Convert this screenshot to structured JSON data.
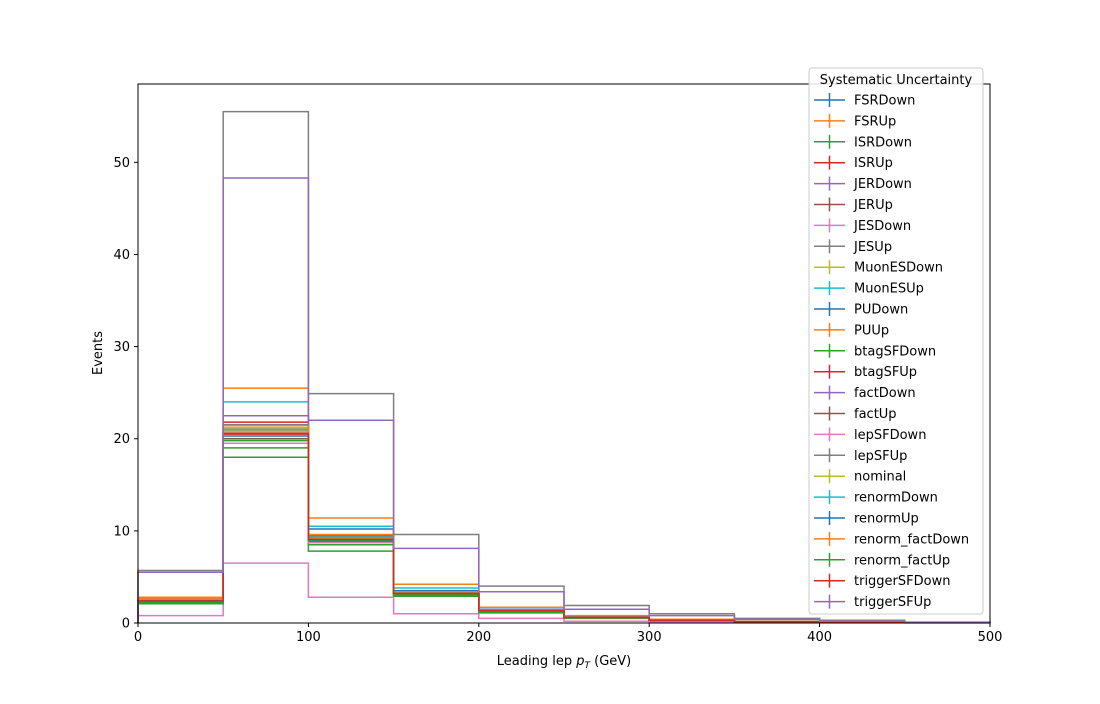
{
  "chart_data": {
    "type": "line",
    "step": "histogram",
    "xlabel_main": "Leading lep ",
    "xlabel_math": "p",
    "xlabel_sub": "T",
    "xlabel_unit": " (GeV)",
    "ylabel": "Events",
    "xlim": [
      0,
      500
    ],
    "ylim": [
      0,
      58.5
    ],
    "xticks": [
      0,
      100,
      200,
      300,
      400,
      500
    ],
    "yticks": [
      0,
      10,
      20,
      30,
      40,
      50
    ],
    "grid": false,
    "legend": {
      "title": "Systematic Uncertainty",
      "position": "top-right"
    },
    "bin_edges": [
      0,
      50,
      100,
      150,
      200,
      250,
      300,
      350,
      400,
      450,
      500
    ],
    "series": [
      {
        "name": "FSRDown",
        "color": "#1f77b4",
        "values": [
          2.5,
          20.0,
          9.0,
          3.2,
          1.3,
          0.6,
          0.3,
          0.15,
          0.08,
          0.03
        ]
      },
      {
        "name": "FSRUp",
        "color": "#ff7f0e",
        "values": [
          2.6,
          21.0,
          9.3,
          3.3,
          1.4,
          0.6,
          0.3,
          0.15,
          0.08,
          0.03
        ]
      },
      {
        "name": "ISRDown",
        "color": "#2ca02c",
        "values": [
          2.2,
          19.0,
          8.5,
          3.0,
          1.2,
          0.55,
          0.25,
          0.12,
          0.06,
          0.03
        ]
      },
      {
        "name": "ISRUp",
        "color": "#d62728",
        "values": [
          2.4,
          20.5,
          9.0,
          3.1,
          1.3,
          0.6,
          0.3,
          0.14,
          0.07,
          0.03
        ]
      },
      {
        "name": "JERDown",
        "color": "#9467bd",
        "values": [
          2.5,
          21.0,
          9.1,
          3.2,
          1.3,
          0.6,
          0.3,
          0.15,
          0.07,
          0.03
        ]
      },
      {
        "name": "JERUp",
        "color": "#8c564b",
        "values": [
          2.5,
          20.8,
          9.0,
          3.2,
          1.3,
          0.6,
          0.3,
          0.15,
          0.07,
          0.03
        ]
      },
      {
        "name": "JESDown",
        "color": "#e377c2",
        "values": [
          0.8,
          6.5,
          2.8,
          1.0,
          0.5,
          0.2,
          0.1,
          0.05,
          0.03,
          0.01
        ]
      },
      {
        "name": "JESUp",
        "color": "#7f7f7f",
        "values": [
          5.7,
          55.5,
          24.9,
          9.6,
          4.0,
          1.9,
          1.0,
          0.5,
          0.3,
          0.1
        ]
      },
      {
        "name": "MuonESDown",
        "color": "#bcbd22",
        "values": [
          2.5,
          21.2,
          9.2,
          3.3,
          1.3,
          0.6,
          0.3,
          0.15,
          0.08,
          0.03
        ]
      },
      {
        "name": "MuonESUp",
        "color": "#17becf",
        "values": [
          2.6,
          24.0,
          10.5,
          3.8,
          1.5,
          0.7,
          0.35,
          0.18,
          0.09,
          0.04
        ]
      },
      {
        "name": "PUDown",
        "color": "#1f77b4",
        "values": [
          2.5,
          21.5,
          10.2,
          3.5,
          1.5,
          0.6,
          0.3,
          0.15,
          0.08,
          0.03
        ]
      },
      {
        "name": "PUUp",
        "color": "#ff7f0e",
        "values": [
          2.8,
          25.5,
          11.4,
          4.2,
          1.7,
          0.8,
          0.4,
          0.2,
          0.1,
          0.05
        ]
      },
      {
        "name": "btagSFDown",
        "color": "#2ca02c",
        "values": [
          2.1,
          18.0,
          7.8,
          2.9,
          1.1,
          0.5,
          0.25,
          0.12,
          0.06,
          0.03
        ]
      },
      {
        "name": "btagSFUp",
        "color": "#d62728",
        "values": [
          2.6,
          21.8,
          9.5,
          3.4,
          1.4,
          0.65,
          0.3,
          0.16,
          0.08,
          0.04
        ]
      },
      {
        "name": "factDown",
        "color": "#9467bd",
        "values": [
          2.5,
          22.5,
          9.4,
          3.3,
          1.4,
          0.6,
          0.3,
          0.15,
          0.08,
          0.03
        ]
      },
      {
        "name": "factUp",
        "color": "#8c564b",
        "values": [
          2.4,
          20.0,
          8.8,
          3.1,
          1.3,
          0.6,
          0.3,
          0.14,
          0.07,
          0.03
        ]
      },
      {
        "name": "lepSFDown",
        "color": "#e377c2",
        "values": [
          2.3,
          19.5,
          8.7,
          3.1,
          1.3,
          0.55,
          0.28,
          0.14,
          0.07,
          0.03
        ]
      },
      {
        "name": "lepSFUp",
        "color": "#7f7f7f",
        "values": [
          2.6,
          21.5,
          9.4,
          3.4,
          1.4,
          0.65,
          0.32,
          0.16,
          0.08,
          0.04
        ]
      },
      {
        "name": "nominal",
        "color": "#bcbd22",
        "values": [
          2.5,
          20.8,
          9.2,
          3.3,
          1.4,
          0.6,
          0.3,
          0.15,
          0.08,
          0.03
        ]
      },
      {
        "name": "renormDown",
        "color": "#17becf",
        "values": [
          2.5,
          21.0,
          9.3,
          3.3,
          1.4,
          0.6,
          0.3,
          0.15,
          0.08,
          0.03
        ]
      },
      {
        "name": "renormUp",
        "color": "#1f77b4",
        "values": [
          2.4,
          20.3,
          9.0,
          3.2,
          1.3,
          0.6,
          0.3,
          0.15,
          0.07,
          0.03
        ]
      },
      {
        "name": "renorm_factDown",
        "color": "#ff7f0e",
        "values": [
          2.6,
          21.4,
          9.6,
          3.4,
          1.4,
          0.6,
          0.3,
          0.15,
          0.08,
          0.03
        ]
      },
      {
        "name": "renorm_factUp",
        "color": "#2ca02c",
        "values": [
          2.3,
          19.8,
          8.9,
          3.1,
          1.3,
          0.55,
          0.28,
          0.14,
          0.07,
          0.03
        ]
      },
      {
        "name": "triggerSFDown",
        "color": "#d62728",
        "values": [
          2.4,
          20.6,
          9.1,
          3.2,
          1.35,
          0.6,
          0.3,
          0.15,
          0.07,
          0.03
        ]
      },
      {
        "name": "triggerSFUp",
        "color": "#9467bd",
        "values": [
          5.5,
          48.3,
          22.0,
          8.1,
          3.4,
          1.5,
          0.8,
          0.4,
          0.2,
          0.08
        ]
      }
    ]
  }
}
